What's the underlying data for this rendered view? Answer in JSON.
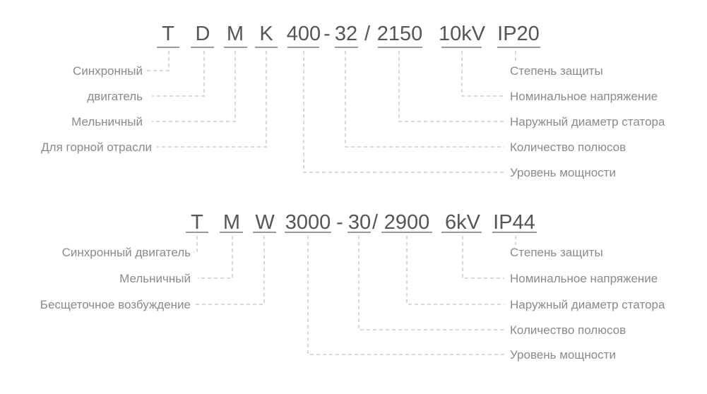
{
  "diagrams": [
    {
      "segments": [
        "T",
        "D",
        "M",
        "K",
        "400",
        "-",
        "32",
        "/",
        "2150",
        "10kV",
        "IP20"
      ],
      "left_labels": [
        "Синхронный",
        "двигатель",
        "Мельничный",
        "Для горной отрасли"
      ],
      "right_labels": [
        "Степень защиты",
        "Номинальное напряжение",
        "Наружный диаметр статора",
        "Количество полюсов",
        "Уровень мощности"
      ]
    },
    {
      "segments": [
        "T",
        "M",
        "W",
        "3000",
        "-",
        "30",
        "/",
        "2900",
        "6kV",
        "IP44"
      ],
      "left_labels": [
        "Синхронный двигатель",
        "Мельничный",
        "Бесщеточное возбуждение"
      ],
      "right_labels": [
        "Степень защиты",
        "Номинальное напряжение",
        "Наружный диаметр статора",
        "Количество полюсов",
        "Уровень мощности"
      ]
    }
  ]
}
